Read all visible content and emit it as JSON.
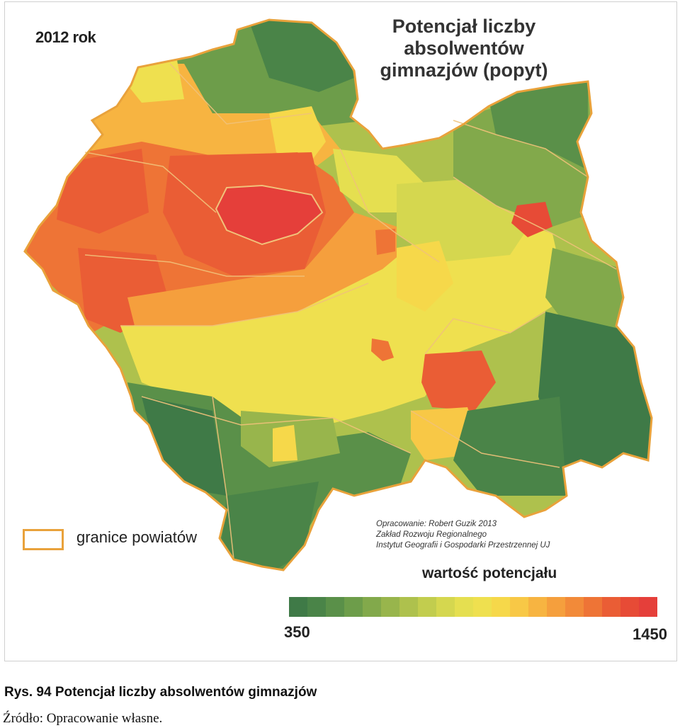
{
  "map": {
    "year_label": "2012 rok",
    "title_lines": [
      "Potencjał liczby",
      "absolwentów",
      "gimnazjów (popyt)"
    ],
    "legend": {
      "boundary_label": "granice powiatów",
      "boundary_color": "#e9a23b"
    },
    "credits": [
      "Opracowanie: Robert Guzik 2013",
      "Zakład Rozwoju Regionalnego",
      "Instytut Geografii i Gospodarki Przestrzennej UJ"
    ],
    "scale": {
      "title": "wartość potencjału",
      "min_label": "350",
      "max_label": "1450",
      "colors": [
        "#3f7a47",
        "#4a8448",
        "#5a9049",
        "#6d9d4a",
        "#82a94b",
        "#98b54c",
        "#aec14d",
        "#c2cd4e",
        "#d5d74f",
        "#e5df50",
        "#efe04f",
        "#f6d84a",
        "#f8c846",
        "#f7b441",
        "#f59f3d",
        "#f28a39",
        "#ee7436",
        "#ea5d35",
        "#e74b36",
        "#e53f3a"
      ]
    },
    "region_colors": {
      "dark_green": "#3f7a47",
      "green": "#6d9d4a",
      "light_green": "#aec14d",
      "yellow": "#efe04f",
      "orange": "#f59f3d",
      "red": "#ea5d35",
      "bright_red": "#e53f3a"
    }
  },
  "caption": "Rys. 94 Potencjał liczby absolwentów gimnazjów",
  "source": "Źródło: Opracowanie własne."
}
